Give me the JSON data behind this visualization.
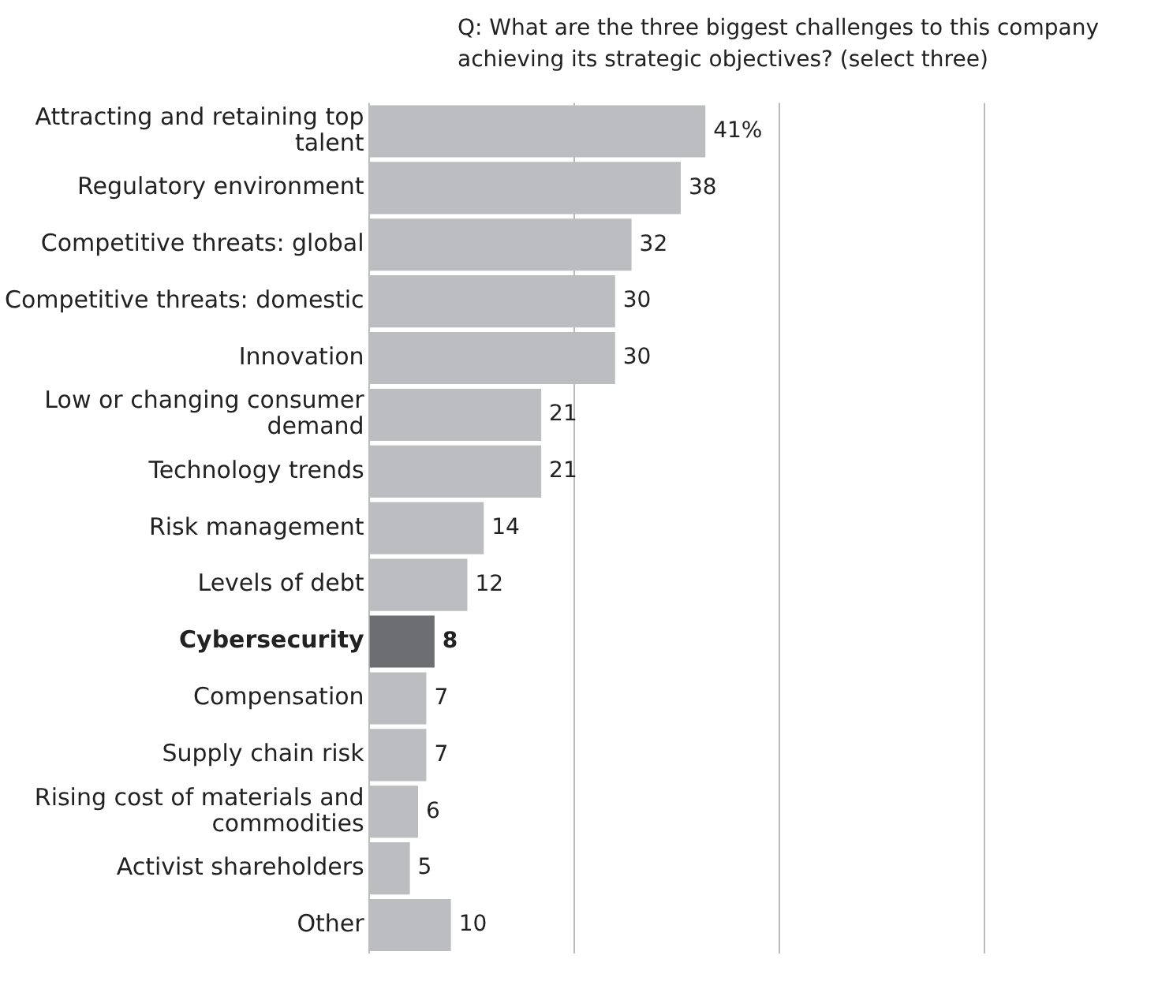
{
  "chart_data": {
    "type": "bar",
    "orientation": "horizontal",
    "title": "Q: What are the three biggest challenges to this company achieving its strategic objectives? (select three)",
    "categories": [
      "Attracting and retaining top talent",
      "Regulatory environment",
      "Competitive threats: global",
      "Competitive threats: domestic",
      "Innovation",
      "Low or changing consumer demand",
      "Technology trends",
      "Risk management",
      "Levels of debt",
      "Cybersecurity",
      "Compensation",
      "Supply chain risk",
      "Rising cost of materials and commodities",
      "Activist shareholders",
      "Other"
    ],
    "values": [
      41,
      38,
      32,
      30,
      30,
      21,
      21,
      14,
      12,
      8,
      7,
      7,
      6,
      5,
      10
    ],
    "value_labels": [
      "41%",
      "38",
      "32",
      "30",
      "30",
      "21",
      "21",
      "14",
      "12",
      "8",
      "7",
      "7",
      "6",
      "5",
      "10"
    ],
    "colors": [
      "#bcbdc0",
      "#bcbdc0",
      "#bcbdc0",
      "#bcbdc0",
      "#bcbdc0",
      "#bcbdc0",
      "#bcbdc0",
      "#bcbdc0",
      "#bcbdc0",
      "#6d6e71",
      "#bcbdc0",
      "#bcbdc0",
      "#bcbdc0",
      "#bcbdc0",
      "#bcbdc0"
    ],
    "xlim": [
      0,
      75
    ],
    "xticks": [
      {
        "value": 0,
        "label": null
      },
      {
        "value": 25,
        "label": null
      },
      {
        "value": 50,
        "label": null
      },
      {
        "value": 75,
        "label": null
      }
    ],
    "grid": "x",
    "tick_labels": "y",
    "legend": false
  }
}
